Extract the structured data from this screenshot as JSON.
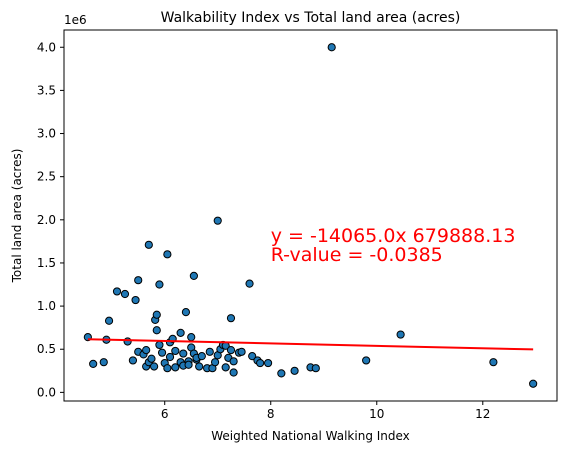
{
  "chart_data": {
    "type": "scatter",
    "title": "Walkability Index vs Total land area (acres)",
    "xlabel": "Weighted National Walking Index",
    "ylabel": "Total land area (acres)",
    "y_offset_label": "1e6",
    "xlim": [
      4.1,
      13.4
    ],
    "ylim": [
      -0.1,
      4.2
    ],
    "x_ticks": [
      6,
      8,
      10,
      12
    ],
    "x_tick_labels": [
      "6",
      "8",
      "10",
      "12"
    ],
    "y_ticks": [
      0.0,
      0.5,
      1.0,
      1.5,
      2.0,
      2.5,
      3.0,
      3.5,
      4.0
    ],
    "y_tick_labels": [
      "0.0",
      "0.5",
      "1.0",
      "1.5",
      "2.0",
      "2.5",
      "3.0",
      "3.5",
      "4.0"
    ],
    "grid": false,
    "marker_color": "#1f77b4",
    "marker_edge_color": "#000000",
    "line_color": "#ff0000",
    "annotation_color": "#ff0000",
    "annotation_lines": [
      "y = -14065.0x 679888.13",
      "R-value = -0.0385"
    ],
    "annotation_x": 8.0,
    "annotation_y": 1.52,
    "regression": {
      "slope": -14065.0,
      "intercept": 679888.13,
      "x_start": 4.55,
      "x_end": 12.95
    },
    "points": [
      [
        4.55,
        0.64
      ],
      [
        4.65,
        0.33
      ],
      [
        4.85,
        0.35
      ],
      [
        4.9,
        0.61
      ],
      [
        4.95,
        0.83
      ],
      [
        5.1,
        1.17
      ],
      [
        5.25,
        1.14
      ],
      [
        5.3,
        0.59
      ],
      [
        5.4,
        0.37
      ],
      [
        5.45,
        1.07
      ],
      [
        5.5,
        0.47
      ],
      [
        5.5,
        1.3
      ],
      [
        5.6,
        0.44
      ],
      [
        5.65,
        0.3
      ],
      [
        5.65,
        0.49
      ],
      [
        5.7,
        1.71
      ],
      [
        5.7,
        0.35
      ],
      [
        5.75,
        0.39
      ],
      [
        5.8,
        0.3
      ],
      [
        5.82,
        0.84
      ],
      [
        5.85,
        0.9
      ],
      [
        5.85,
        0.72
      ],
      [
        5.9,
        1.25
      ],
      [
        5.9,
        0.55
      ],
      [
        5.95,
        0.46
      ],
      [
        6.0,
        0.34
      ],
      [
        6.05,
        1.6
      ],
      [
        6.05,
        0.28
      ],
      [
        6.1,
        0.41
      ],
      [
        6.1,
        0.58
      ],
      [
        6.15,
        0.62
      ],
      [
        6.2,
        0.29
      ],
      [
        6.2,
        0.48
      ],
      [
        6.3,
        0.35
      ],
      [
        6.3,
        0.69
      ],
      [
        6.35,
        0.45
      ],
      [
        6.35,
        0.31
      ],
      [
        6.4,
        0.93
      ],
      [
        6.45,
        0.36
      ],
      [
        6.45,
        0.32
      ],
      [
        6.5,
        0.52
      ],
      [
        6.5,
        0.64
      ],
      [
        6.55,
        0.45
      ],
      [
        6.55,
        1.35
      ],
      [
        6.6,
        0.38
      ],
      [
        6.6,
        0.4
      ],
      [
        6.65,
        0.3
      ],
      [
        6.7,
        0.42
      ],
      [
        6.8,
        0.28
      ],
      [
        6.85,
        0.47
      ],
      [
        6.9,
        0.28
      ],
      [
        6.95,
        0.35
      ],
      [
        7.0,
        1.99
      ],
      [
        7.0,
        0.43
      ],
      [
        7.05,
        0.5
      ],
      [
        7.1,
        0.55
      ],
      [
        7.15,
        0.54
      ],
      [
        7.15,
        0.29
      ],
      [
        7.2,
        0.4
      ],
      [
        7.25,
        0.86
      ],
      [
        7.25,
        0.49
      ],
      [
        7.3,
        0.23
      ],
      [
        7.3,
        0.36
      ],
      [
        7.4,
        0.46
      ],
      [
        7.45,
        0.47
      ],
      [
        7.6,
        1.26
      ],
      [
        7.65,
        0.42
      ],
      [
        7.75,
        0.37
      ],
      [
        7.8,
        0.34
      ],
      [
        7.95,
        0.34
      ],
      [
        8.2,
        0.22
      ],
      [
        8.45,
        0.25
      ],
      [
        8.75,
        0.29
      ],
      [
        8.85,
        0.28
      ],
      [
        9.15,
        4.0
      ],
      [
        9.8,
        0.37
      ],
      [
        10.45,
        0.67
      ],
      [
        12.2,
        0.35
      ],
      [
        12.95,
        0.1
      ]
    ]
  }
}
